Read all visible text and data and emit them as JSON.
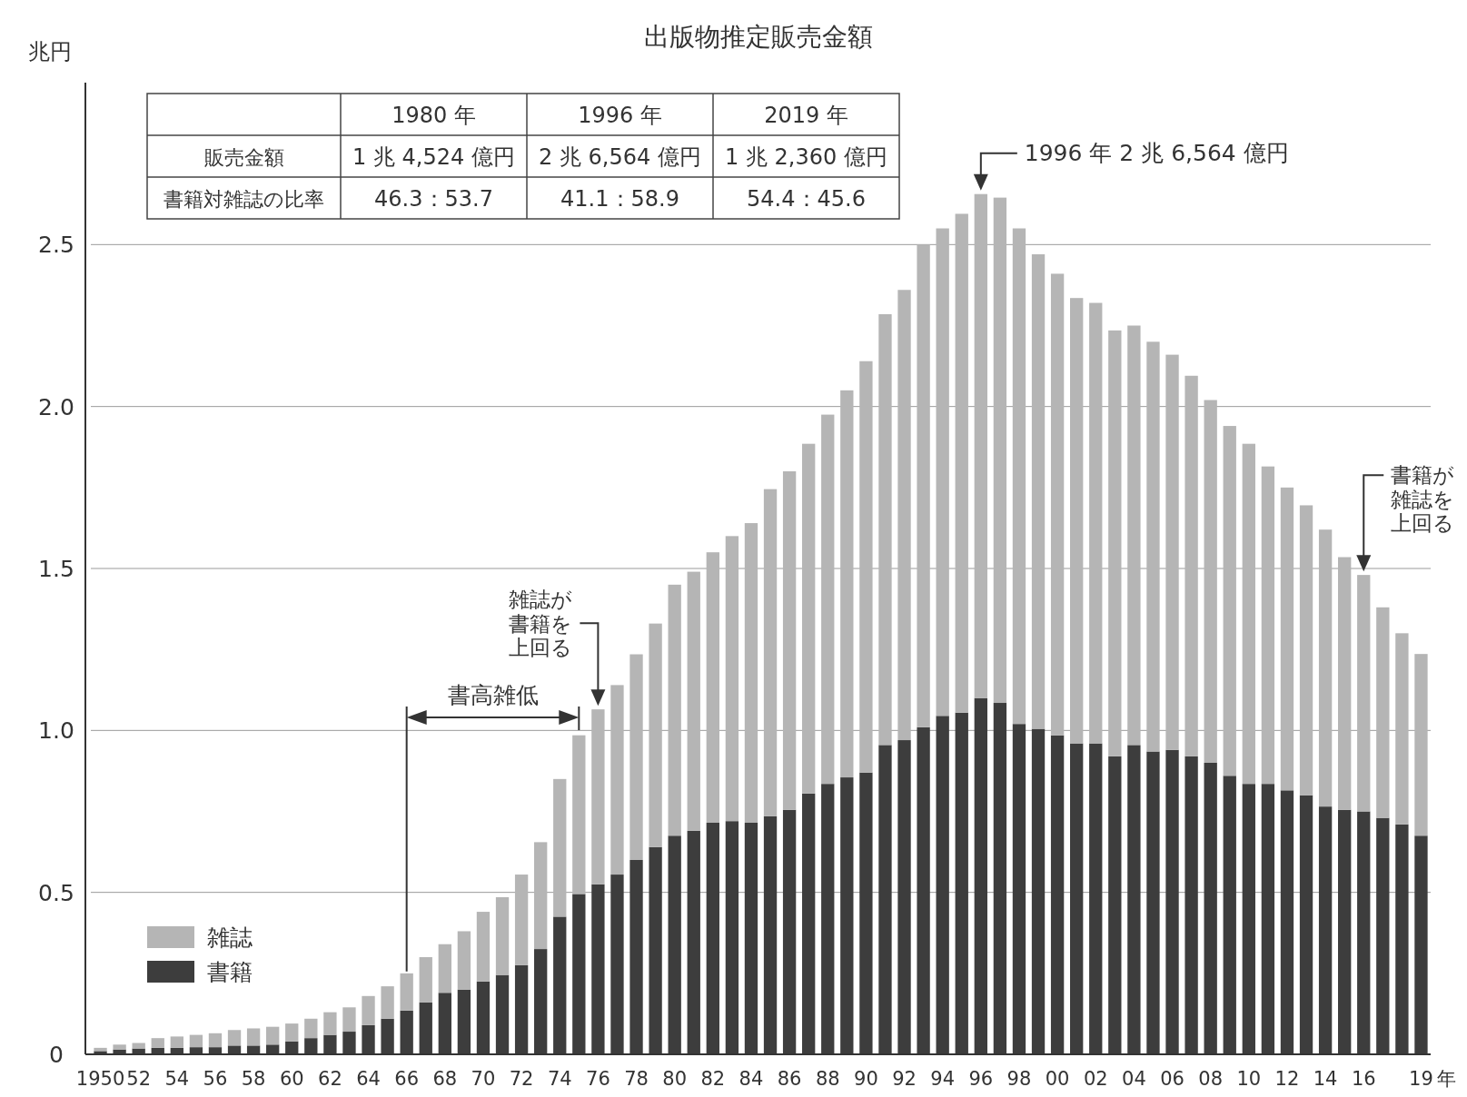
{
  "chart_data": {
    "type": "bar",
    "title": "出版物推定販売金額",
    "ylabel": "兆円",
    "xlabel": "年",
    "stacked": true,
    "grid": "y",
    "legend": "bottom left",
    "categories": [
      "1950",
      null,
      "52",
      null,
      "54",
      null,
      "56",
      null,
      "58",
      null,
      "60",
      null,
      "62",
      null,
      "64",
      null,
      "66",
      null,
      "68",
      null,
      "70",
      null,
      "72",
      null,
      "74",
      null,
      "76",
      null,
      "78",
      null,
      "80",
      null,
      "82",
      null,
      "84",
      null,
      "86",
      null,
      "88",
      null,
      "90",
      null,
      "92",
      null,
      "94",
      null,
      "96",
      null,
      "98",
      null,
      "00",
      null,
      "02",
      null,
      "04",
      null,
      "06",
      null,
      "08",
      null,
      "10",
      null,
      "12",
      null,
      "14",
      null,
      "16",
      null,
      null,
      "19"
    ],
    "series": [
      {
        "name": "書籍",
        "color": "#3d3d3d",
        "values": [
          0.01,
          0.015,
          0.018,
          0.02,
          0.02,
          0.022,
          0.022,
          0.027,
          0.027,
          0.03,
          0.04,
          0.05,
          0.06,
          0.07,
          0.09,
          0.11,
          0.135,
          0.16,
          0.19,
          0.2,
          0.225,
          0.245,
          0.275,
          0.325,
          0.425,
          0.495,
          0.525,
          0.555,
          0.6,
          0.64,
          0.675,
          0.69,
          0.715,
          0.72,
          0.715,
          0.735,
          0.755,
          0.805,
          0.835,
          0.855,
          0.87,
          0.955,
          0.97,
          1.01,
          1.045,
          1.055,
          1.1,
          1.085,
          1.02,
          1.005,
          0.985,
          0.96,
          0.96,
          0.92,
          0.955,
          0.935,
          0.94,
          0.92,
          0.9,
          0.86,
          0.835,
          0.835,
          0.815,
          0.8,
          0.765,
          0.755,
          0.75,
          0.73,
          0.71,
          0.675
        ]
      },
      {
        "name": "雑誌",
        "color": "#b5b5b5",
        "values": [
          0.01,
          0.015,
          0.017,
          0.03,
          0.035,
          0.038,
          0.043,
          0.048,
          0.053,
          0.055,
          0.055,
          0.06,
          0.07,
          0.075,
          0.09,
          0.1,
          0.115,
          0.14,
          0.15,
          0.18,
          0.215,
          0.24,
          0.28,
          0.33,
          0.425,
          0.49,
          0.54,
          0.585,
          0.635,
          0.69,
          0.775,
          0.8,
          0.835,
          0.88,
          0.925,
          1.01,
          1.045,
          1.08,
          1.14,
          1.195,
          1.27,
          1.33,
          1.39,
          1.49,
          1.505,
          1.54,
          1.556,
          1.56,
          1.53,
          1.465,
          1.425,
          1.375,
          1.36,
          1.315,
          1.295,
          1.265,
          1.22,
          1.175,
          1.12,
          1.08,
          1.05,
          0.98,
          0.935,
          0.895,
          0.855,
          0.78,
          0.73,
          0.65,
          0.59,
          0.561
        ]
      }
    ],
    "ylim": [
      0,
      3.0
    ],
    "yticks": [
      0,
      0.5,
      {
        "value": 1,
        "label": "1.0"
      },
      1.5,
      {
        "value": 2,
        "label": "2.0"
      },
      2.5
    ],
    "annotations": [
      "1980 年",
      "1996 年",
      "2019 年",
      "販売金額",
      "1 兆 4,524 億円",
      "2 兆 6,564 億円",
      "1 兆 2,360 億円",
      "書籍対雑誌の比率",
      "46.3：53.7",
      "41.1：58.9",
      "54.4：45.6",
      "書高雑低",
      {
        "text": "雑誌が書籍を上回る",
        "x": "76",
        "y": 1.065
      },
      {
        "text": "1996 年 2 兆 6,564 億円",
        "x": "96",
        "y": 2.656
      },
      {
        "text": "書籍が雑誌を上回る",
        "x": "16",
        "y": 1.48
      }
    ]
  }
}
